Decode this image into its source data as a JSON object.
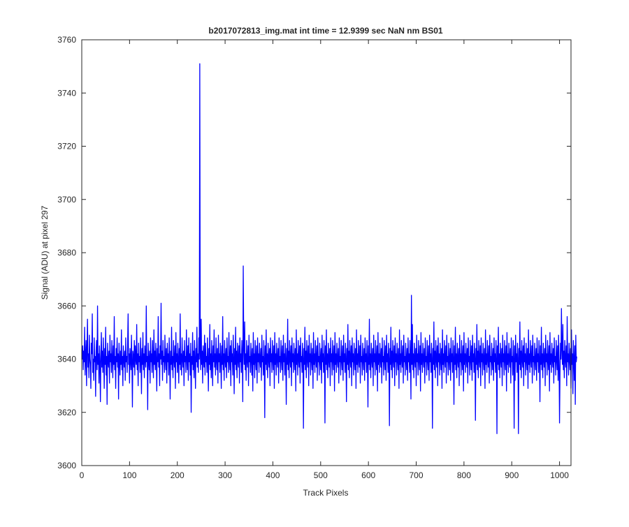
{
  "chart_data": {
    "type": "line",
    "title": "b2017072813_img.mat int time = 12.9399 sec  NaN nm BS01",
    "xlabel": "Track Pixels",
    "ylabel": "Signal (ADU) at pixel 297",
    "xlim": [
      0,
      1024
    ],
    "ylim": [
      3600,
      3760
    ],
    "xticks": [
      0,
      100,
      200,
      300,
      400,
      500,
      600,
      700,
      800,
      900,
      1000
    ],
    "yticks": [
      3600,
      3620,
      3640,
      3660,
      3680,
      3700,
      3720,
      3740,
      3760
    ],
    "grid": false,
    "line_color": "#0000ff",
    "series": [
      {
        "name": "",
        "x_start": 1,
        "x_step": 1,
        "values": [
          3640,
          3645,
          3636,
          3643,
          3639,
          3652,
          3634,
          3641,
          3647,
          3630,
          3644,
          3655,
          3637,
          3642,
          3633,
          3649,
          3640,
          3638,
          3629,
          3646,
          3642,
          3657,
          3635,
          3640,
          3632,
          3648,
          3639,
          3641,
          3626,
          3643,
          3647,
          3636,
          3660,
          3638,
          3642,
          3631,
          3645,
          3639,
          3624,
          3641,
          3650,
          3637,
          3643,
          3635,
          3648,
          3640,
          3629,
          3644,
          3638,
          3652,
          3634,
          3641,
          3623,
          3646,
          3640,
          3637,
          3643,
          3631,
          3649,
          3639,
          3642,
          3635,
          3647,
          3640,
          3633,
          3645,
          3638,
          3656,
          3636,
          3641,
          3629,
          3644,
          3639,
          3648,
          3637,
          3642,
          3625,
          3646,
          3640,
          3634,
          3643,
          3638,
          3651,
          3636,
          3641,
          3630,
          3645,
          3640,
          3637,
          3643,
          3632,
          3648,
          3639,
          3641,
          3635,
          3646,
          3657,
          3638,
          3642,
          3631,
          3644,
          3640,
          3636,
          3649,
          3639,
          3622,
          3643,
          3641,
          3637,
          3647,
          3634,
          3645,
          3640,
          3638,
          3653,
          3636,
          3642,
          3630,
          3646,
          3639,
          3641,
          3635,
          3648,
          3640,
          3627,
          3644,
          3638,
          3650,
          3636,
          3642,
          3633,
          3645,
          3640,
          3637,
          3660,
          3639,
          3641,
          3621,
          3646,
          3640,
          3636,
          3643,
          3631,
          3648,
          3639,
          3642,
          3635,
          3647,
          3640,
          3633,
          3651,
          3638,
          3643,
          3636,
          3646,
          3640,
          3628,
          3644,
          3639,
          3656,
          3637,
          3642,
          3630,
          3645,
          3640,
          3661,
          3638,
          3643,
          3632,
          3647,
          3639,
          3641,
          3635,
          3649,
          3640,
          3636,
          3644,
          3631,
          3646,
          3639,
          3642,
          3634,
          3648,
          3640,
          3625,
          3643,
          3638,
          3652,
          3636,
          3641,
          3633,
          3647,
          3640,
          3637,
          3645,
          3629,
          3650,
          3639,
          3642,
          3635,
          3646,
          3640,
          3631,
          3644,
          3638,
          3657,
          3636,
          3642,
          3634,
          3648,
          3640,
          3637,
          3643,
          3630,
          3647,
          3639,
          3641,
          3635,
          3651,
          3640,
          3636,
          3645,
          3632,
          3648,
          3639,
          3642,
          3634,
          3646,
          3620,
          3641,
          3638,
          3650,
          3636,
          3643,
          3633,
          3647,
          3640,
          3629,
          3644,
          3639,
          3652,
          3637,
          3642,
          3635,
          3648,
          3640,
          3751,
          3642,
          3636,
          3655,
          3638,
          3643,
          3631,
          3645,
          3640,
          3637,
          3649,
          3634,
          3646,
          3639,
          3641,
          3635,
          3648,
          3640,
          3628,
          3644,
          3638,
          3653,
          3636,
          3642,
          3633,
          3647,
          3640,
          3630,
          3645,
          3639,
          3651,
          3637,
          3642,
          3634,
          3648,
          3640,
          3636,
          3644,
          3631,
          3649,
          3639,
          3642,
          3635,
          3646,
          3640,
          3629,
          3645,
          3638,
          3656,
          3636,
          3642,
          3632,
          3647,
          3640,
          3637,
          3644,
          3633,
          3648,
          3639,
          3641,
          3635,
          3650,
          3640,
          3636,
          3645,
          3630,
          3647,
          3639,
          3642,
          3634,
          3649,
          3640,
          3627,
          3644,
          3638,
          3652,
          3636,
          3643,
          3633,
          3646,
          3640,
          3637,
          3645,
          3631,
          3648,
          3639,
          3642,
          3635,
          3647,
          3640,
          3624,
          3675,
          3645,
          3638,
          3654,
          3636,
          3642,
          3632,
          3647,
          3640,
          3637,
          3645,
          3630,
          3649,
          3639,
          3641,
          3635,
          3646,
          3640,
          3634,
          3644,
          3628,
          3650,
          3638,
          3642,
          3633,
          3647,
          3640,
          3636,
          3645,
          3631,
          3648,
          3639,
          3642,
          3635,
          3646,
          3640,
          3637,
          3644,
          3632,
          3649,
          3639,
          3641,
          3634,
          3647,
          3640,
          3618,
          3645,
          3638,
          3651,
          3636,
          3642,
          3633,
          3646,
          3640,
          3637,
          3644,
          3630,
          3648,
          3639,
          3642,
          3635,
          3647,
          3640,
          3636,
          3645,
          3629,
          3650,
          3638,
          3642,
          3634,
          3646,
          3640,
          3637,
          3644,
          3631,
          3648,
          3639,
          3641,
          3635,
          3647,
          3640,
          3636,
          3645,
          3632,
          3649,
          3639,
          3642,
          3634,
          3646,
          3640,
          3623,
          3644,
          3638,
          3655,
          3636,
          3643,
          3633,
          3647,
          3640,
          3637,
          3645,
          3630,
          3648,
          3639,
          3642,
          3635,
          3646,
          3640,
          3636,
          3644,
          3628,
          3651,
          3638,
          3642,
          3634,
          3647,
          3640,
          3637,
          3645,
          3631,
          3648,
          3639,
          3641,
          3635,
          3646,
          3640,
          3614,
          3644,
          3638,
          3652,
          3636,
          3643,
          3633,
          3647,
          3640,
          3637,
          3645,
          3630,
          3649,
          3639,
          3642,
          3634,
          3646,
          3640,
          3636,
          3644,
          3629,
          3650,
          3638,
          3642,
          3635,
          3647,
          3640,
          3637,
          3645,
          3632,
          3648,
          3639,
          3641,
          3634,
          3646,
          3640,
          3636,
          3644,
          3631,
          3649,
          3639,
          3642,
          3635,
          3647,
          3640,
          3616,
          3645,
          3638,
          3651,
          3636,
          3642,
          3633,
          3646,
          3640,
          3637,
          3644,
          3630,
          3648,
          3639,
          3642,
          3634,
          3647,
          3640,
          3636,
          3645,
          3628,
          3650,
          3638,
          3642,
          3635,
          3646,
          3640,
          3637,
          3644,
          3631,
          3648,
          3639,
          3641,
          3634,
          3647,
          3640,
          3636,
          3645,
          3632,
          3649,
          3639,
          3642,
          3635,
          3646,
          3640,
          3624,
          3644,
          3638,
          3653,
          3636,
          3643,
          3633,
          3647,
          3640,
          3637,
          3645,
          3630,
          3648,
          3639,
          3642,
          3634,
          3646,
          3640,
          3636,
          3644,
          3629,
          3651,
          3638,
          3642,
          3635,
          3647,
          3640,
          3637,
          3645,
          3631,
          3649,
          3639,
          3641,
          3634,
          3646,
          3640,
          3636,
          3644,
          3632,
          3648,
          3639,
          3642,
          3635,
          3647,
          3640,
          3622,
          3645,
          3638,
          3655,
          3636,
          3642,
          3633,
          3646,
          3640,
          3637,
          3644,
          3630,
          3649,
          3639,
          3642,
          3634,
          3647,
          3640,
          3636,
          3645,
          3628,
          3650,
          3638,
          3642,
          3635,
          3646,
          3640,
          3637,
          3644,
          3631,
          3648,
          3639,
          3641,
          3634,
          3647,
          3640,
          3636,
          3645,
          3632,
          3649,
          3639,
          3642,
          3635,
          3646,
          3640,
          3615,
          3644,
          3638,
          3652,
          3636,
          3643,
          3633,
          3647,
          3640,
          3637,
          3645,
          3630,
          3648,
          3639,
          3642,
          3634,
          3646,
          3640,
          3636,
          3644,
          3629,
          3651,
          3638,
          3642,
          3635,
          3647,
          3640,
          3637,
          3645,
          3631,
          3649,
          3639,
          3641,
          3634,
          3646,
          3640,
          3636,
          3644,
          3632,
          3648,
          3639,
          3642,
          3635,
          3647,
          3640,
          3625,
          3664,
          3638,
          3653,
          3636,
          3642,
          3633,
          3646,
          3640,
          3637,
          3644,
          3630,
          3649,
          3639,
          3642,
          3634,
          3647,
          3640,
          3636,
          3645,
          3628,
          3650,
          3638,
          3642,
          3635,
          3646,
          3640,
          3637,
          3644,
          3631,
          3648,
          3639,
          3641,
          3634,
          3647,
          3640,
          3636,
          3645,
          3632,
          3649,
          3639,
          3642,
          3635,
          3646,
          3640,
          3614,
          3644,
          3638,
          3654,
          3636,
          3643,
          3633,
          3647,
          3640,
          3637,
          3645,
          3630,
          3648,
          3639,
          3642,
          3634,
          3646,
          3640,
          3636,
          3644,
          3629,
          3651,
          3638,
          3642,
          3635,
          3647,
          3640,
          3637,
          3645,
          3631,
          3649,
          3639,
          3641,
          3634,
          3646,
          3640,
          3636,
          3644,
          3632,
          3648,
          3639,
          3642,
          3635,
          3647,
          3640,
          3623,
          3645,
          3638,
          3652,
          3636,
          3642,
          3633,
          3646,
          3640,
          3637,
          3644,
          3630,
          3649,
          3639,
          3642,
          3634,
          3647,
          3640,
          3636,
          3645,
          3628,
          3650,
          3638,
          3642,
          3635,
          3646,
          3640,
          3637,
          3644,
          3631,
          3648,
          3639,
          3641,
          3634,
          3647,
          3640,
          3636,
          3645,
          3632,
          3649,
          3639,
          3642,
          3635,
          3646,
          3640,
          3617,
          3644,
          3638,
          3653,
          3636,
          3643,
          3633,
          3647,
          3640,
          3637,
          3645,
          3630,
          3648,
          3639,
          3642,
          3634,
          3646,
          3640,
          3636,
          3644,
          3629,
          3651,
          3638,
          3642,
          3635,
          3647,
          3640,
          3637,
          3645,
          3631,
          3649,
          3639,
          3641,
          3634,
          3646,
          3640,
          3636,
          3644,
          3632,
          3648,
          3639,
          3642,
          3635,
          3647,
          3640,
          3612,
          3645,
          3638,
          3652,
          3636,
          3642,
          3633,
          3646,
          3640,
          3637,
          3644,
          3630,
          3649,
          3639,
          3642,
          3634,
          3647,
          3640,
          3636,
          3645,
          3628,
          3650,
          3638,
          3642,
          3635,
          3646,
          3640,
          3637,
          3644,
          3631,
          3648,
          3639,
          3641,
          3634,
          3647,
          3640,
          3614,
          3645,
          3632,
          3649,
          3639,
          3642,
          3635,
          3646,
          3640,
          3612,
          3644,
          3638,
          3654,
          3636,
          3643,
          3633,
          3647,
          3640,
          3637,
          3645,
          3630,
          3648,
          3639,
          3642,
          3634,
          3646,
          3640,
          3636,
          3644,
          3629,
          3651,
          3638,
          3642,
          3635,
          3647,
          3640,
          3637,
          3645,
          3631,
          3649,
          3639,
          3641,
          3634,
          3646,
          3640,
          3636,
          3644,
          3632,
          3648,
          3639,
          3642,
          3635,
          3647,
          3640,
          3624,
          3645,
          3638,
          3652,
          3636,
          3642,
          3633,
          3646,
          3640,
          3637,
          3644,
          3630,
          3649,
          3639,
          3642,
          3634,
          3647,
          3640,
          3636,
          3645,
          3628,
          3650,
          3638,
          3642,
          3635,
          3646,
          3640,
          3637,
          3644,
          3631,
          3648,
          3639,
          3641,
          3634,
          3647,
          3640,
          3636,
          3645,
          3632,
          3649,
          3639,
          3616,
          3635,
          3646,
          3640,
          3659,
          3644,
          3638,
          3653,
          3636,
          3643,
          3633,
          3647,
          3640,
          3637,
          3645,
          3630,
          3656,
          3639,
          3642,
          3634,
          3646,
          3640,
          3636,
          3644,
          3629,
          3651,
          3638,
          3642,
          3627,
          3647,
          3640,
          3632,
          3645,
          3623,
          3649,
          3639,
          3641
        ]
      }
    ]
  }
}
